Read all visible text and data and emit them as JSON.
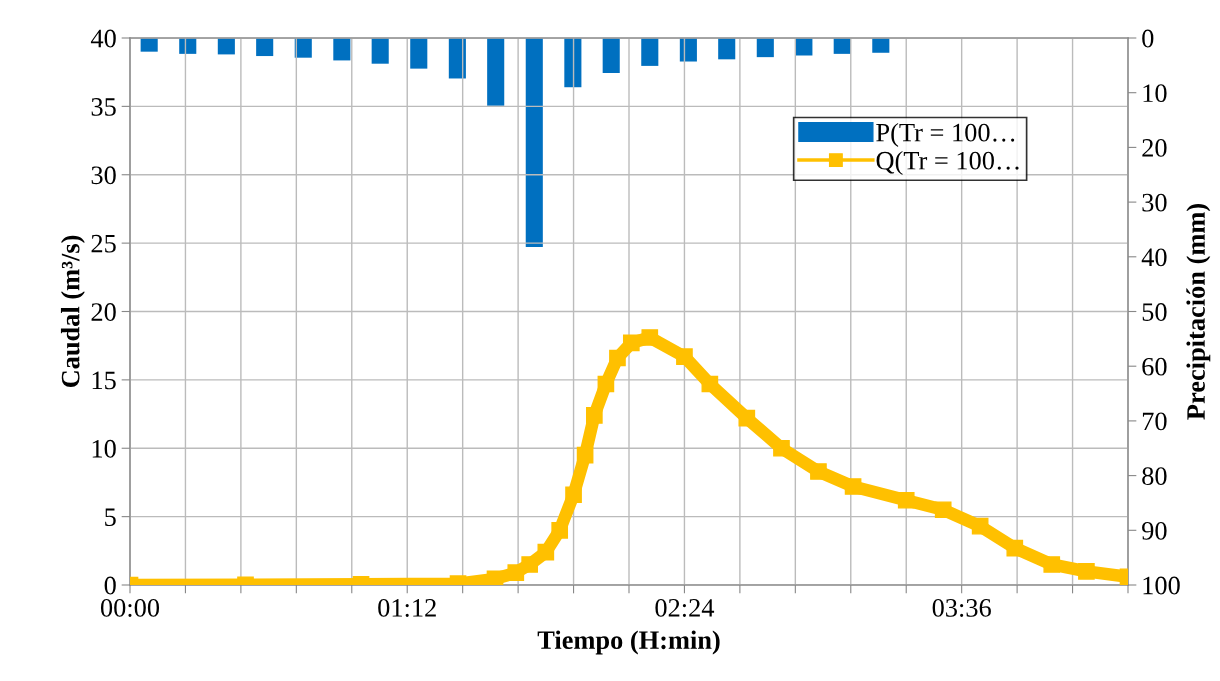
{
  "chart_data": {
    "type": "line",
    "xlabel": "Tiempo (H:min)",
    "ylabel": "Caudal (m³/s)",
    "y2label": "Precipitación (mm)",
    "xlim": [
      0,
      4.32
    ],
    "xticks": [
      {
        "value": 0,
        "label": "00:00"
      },
      {
        "value": 0.24,
        "label": null
      },
      {
        "value": 0.48,
        "label": null
      },
      {
        "value": 0.72,
        "label": null
      },
      {
        "value": 0.96,
        "label": null
      },
      {
        "value": 1.2,
        "label": "01:12"
      },
      {
        "value": 1.44,
        "label": null
      },
      {
        "value": 1.68,
        "label": null
      },
      {
        "value": 1.92,
        "label": null
      },
      {
        "value": 2.16,
        "label": null
      },
      {
        "value": 2.4,
        "label": "02:24"
      },
      {
        "value": 2.64,
        "label": null
      },
      {
        "value": 2.88,
        "label": null
      },
      {
        "value": 3.12,
        "label": null
      },
      {
        "value": 3.36,
        "label": null
      },
      {
        "value": 3.6,
        "label": "03:36"
      },
      {
        "value": 3.84,
        "label": null
      },
      {
        "value": 4.08,
        "label": null
      },
      {
        "value": 4.32,
        "label": null
      }
    ],
    "ylim": [
      0,
      40
    ],
    "yticks": [
      0,
      5,
      10,
      15,
      20,
      25,
      30,
      35,
      40
    ],
    "y2lim": [
      100,
      0
    ],
    "y2ticks": [
      0,
      10,
      20,
      30,
      40,
      50,
      60,
      70,
      80,
      90,
      100
    ],
    "grid": true,
    "legend": "top right",
    "series": [
      {
        "name": "P(Tr = 100…",
        "type": "bar",
        "axis": "y2",
        "color": "#0070c0",
        "x": [
          0.083,
          0.25,
          0.417,
          0.583,
          0.75,
          0.917,
          1.083,
          1.25,
          1.417,
          1.583,
          1.75,
          1.917,
          2.083,
          2.25,
          2.417,
          2.583,
          2.75,
          2.917,
          3.083,
          3.25
        ],
        "values": [
          2.5,
          2.9,
          3.0,
          3.3,
          3.6,
          4.1,
          4.7,
          5.6,
          7.4,
          12.4,
          38.2,
          9.0,
          6.4,
          5.1,
          4.3,
          3.9,
          3.5,
          3.2,
          2.9,
          2.7
        ]
      },
      {
        "name": "Q(Tr = 100…",
        "color": "#ffc000",
        "marker": "square",
        "x": [
          0,
          0.5,
          1.0,
          1.42,
          1.58,
          1.67,
          1.73,
          1.8,
          1.86,
          1.92,
          1.97,
          2.01,
          2.06,
          2.11,
          2.17,
          2.25,
          2.4,
          2.51,
          2.67,
          2.82,
          2.98,
          3.13,
          3.36,
          3.52,
          3.68,
          3.83,
          3.99,
          4.14,
          4.32
        ],
        "values": [
          0.0,
          0.02,
          0.05,
          0.1,
          0.45,
          0.9,
          1.5,
          2.4,
          4.0,
          6.6,
          9.5,
          12.4,
          14.7,
          16.6,
          17.7,
          18.1,
          16.7,
          14.7,
          12.2,
          10.0,
          8.3,
          7.2,
          6.2,
          5.5,
          4.3,
          2.7,
          1.5,
          1.0,
          0.6
        ]
      }
    ]
  }
}
